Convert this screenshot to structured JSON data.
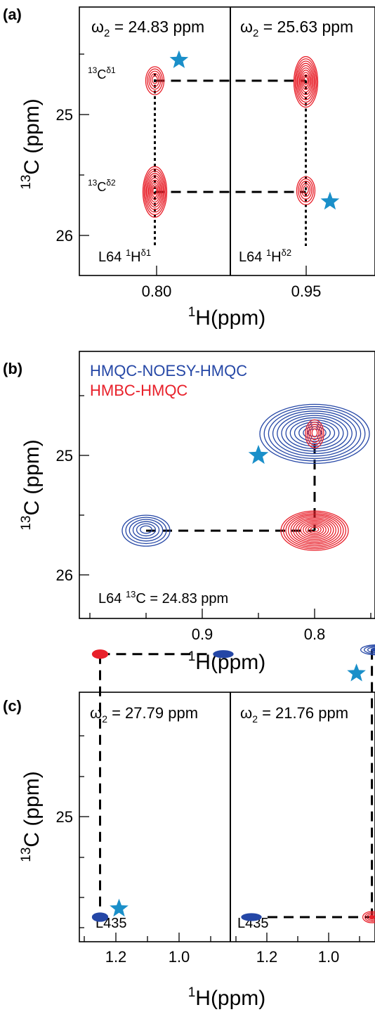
{
  "chart_data": [
    {
      "panel": "(a)",
      "type": "nmr-contour",
      "ylabel": "13C (ppm)",
      "xlabel": "1H(ppm)",
      "ylim": [
        26.3,
        24.1
      ],
      "yticks": [
        25,
        26
      ],
      "ytick_labels": [
        "25",
        "26"
      ],
      "strips": [
        {
          "title": "ω2 = 24.83 ppm",
          "xlim": [
            0.775,
            0.825
          ],
          "xticks": [
            0.8
          ],
          "xtick_labels": [
            "0.80"
          ],
          "corner_label": "L64 1Hδ1",
          "peaks": [
            {
              "x": 0.8,
              "y": 24.72,
              "series": "red",
              "size": "small"
            },
            {
              "x": 0.8,
              "y": 25.64,
              "series": "red",
              "size": "large"
            }
          ],
          "row_labels": [
            {
              "text": "13Cδ1",
              "y": 24.72
            },
            {
              "text": "13Cδ2",
              "y": 25.64
            }
          ],
          "stars": [
            {
              "x": 0.808,
              "y": 24.55
            }
          ]
        },
        {
          "title": "ω2 = 25.63 ppm",
          "xlim": [
            0.925,
            0.975
          ],
          "xticks": [
            0.95
          ],
          "xtick_labels": [
            "0.95"
          ],
          "corner_label": "L64 1Hδ2",
          "peaks": [
            {
              "x": 0.95,
              "y": 24.73,
              "series": "red",
              "size": "large"
            },
            {
              "x": 0.95,
              "y": 25.63,
              "series": "red",
              "size": "small"
            }
          ],
          "stars": [
            {
              "x": 0.958,
              "y": 25.72
            }
          ]
        }
      ],
      "connections": [
        {
          "y": 24.72,
          "style": "dashed"
        },
        {
          "y": 25.64,
          "style": "dashed"
        }
      ]
    },
    {
      "panel": "(b)",
      "type": "nmr-contour",
      "ylabel": "13C (ppm)",
      "xlabel": "1H(ppm)",
      "xlim": [
        0.98,
        0.77
      ],
      "ylim": [
        26.3,
        24.1
      ],
      "xticks": [
        0.9,
        0.8
      ],
      "xtick_labels": [
        "0.9",
        "0.8"
      ],
      "yticks": [
        25,
        26
      ],
      "ytick_labels": [
        "25",
        "26"
      ],
      "legend": [
        {
          "name": "HMQC-NOESY-HMQC",
          "color": "#2547a6"
        },
        {
          "name": "HMBC-HMQC",
          "color": "#e8202a"
        }
      ],
      "corner_label": "L64  13C = 24.83 ppm",
      "peaks": [
        {
          "x": 0.8,
          "y": 24.82,
          "series": "blue",
          "size": "large"
        },
        {
          "x": 0.8,
          "y": 24.82,
          "series": "red",
          "size": "small"
        },
        {
          "x": 0.8,
          "y": 25.63,
          "series": "red",
          "size": "large"
        },
        {
          "x": 0.95,
          "y": 25.63,
          "series": "blue",
          "size": "medium"
        }
      ],
      "stars": [
        {
          "x": 0.85,
          "y": 25.0
        }
      ]
    },
    {
      "panel": "(c)",
      "type": "nmr-contour",
      "ylabel": "13C (ppm)",
      "xlabel": "1H(ppm)",
      "ylim": [
        25.8,
        24.1
      ],
      "yticks": [
        25
      ],
      "ytick_labels": [
        "25"
      ],
      "strips": [
        {
          "title": "ω2 = 27.79 ppm",
          "xlim": [
            1.3,
            0.83
          ],
          "xticks": [
            1.2,
            1.0
          ],
          "xtick_labels": [
            "1.2",
            "1.0"
          ],
          "corner_label": "L435",
          "peaks": [
            {
              "x": 1.25,
              "y": 24.24,
              "series": "red"
            },
            {
              "x": 0.86,
              "y": 24.24,
              "series": "blue"
            },
            {
              "x": 1.25,
              "y": 25.47,
              "series": "blue"
            }
          ],
          "stars": [
            {
              "x": 1.19,
              "y": 25.43
            }
          ]
        },
        {
          "title": "ω2 = 21.76 ppm",
          "xlim": [
            1.3,
            0.82
          ],
          "xticks": [
            1.2,
            1.0
          ],
          "xtick_labels": [
            "1.2",
            "1.0"
          ],
          "corner_label": "L435",
          "peaks": [
            {
              "x": 0.86,
              "y": 24.22,
              "series": "blue"
            },
            {
              "x": 1.25,
              "y": 25.47,
              "series": "blue"
            },
            {
              "x": 0.86,
              "y": 25.47,
              "series": "red"
            }
          ],
          "stars": [
            {
              "x": 0.91,
              "y": 24.33
            }
          ]
        }
      ]
    }
  ],
  "colors": {
    "red": "#e8202a",
    "blue": "#2547a6",
    "star": "#1a8fc9"
  }
}
